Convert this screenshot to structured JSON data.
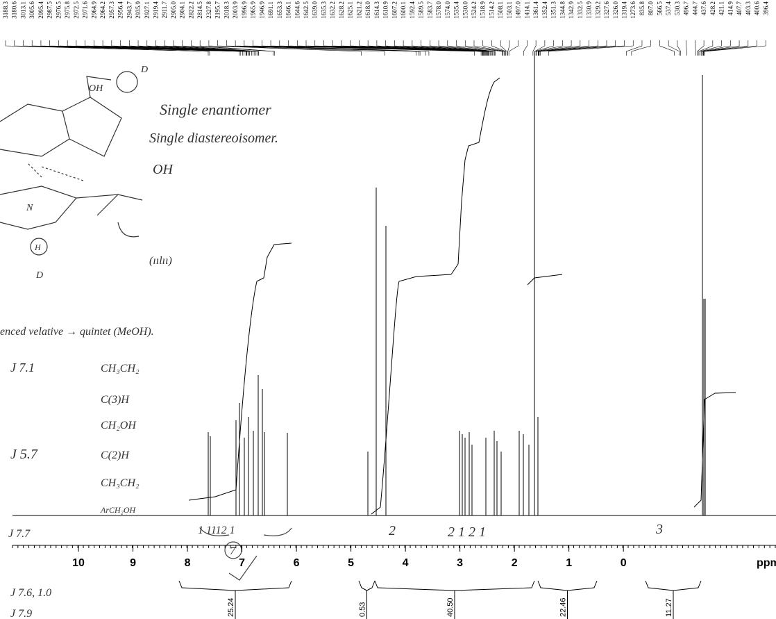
{
  "chart_data": {
    "type": "spectrum",
    "x_label": "ppm",
    "xlim": [
      11.44,
      -2.8
    ],
    "xticks": [
      10,
      9,
      8,
      7,
      6,
      5,
      4,
      3,
      2,
      1,
      0
    ],
    "peak_labels": [
      "3188.3",
      "3180.6",
      "3013.1",
      "3005.6",
      "2995.4",
      "2987.5",
      "2976.5",
      "2975.8",
      "2972.5",
      "2971.6",
      "2964.9",
      "2964.2",
      "2957.3",
      "2956.4",
      "2943.7",
      "2935.9",
      "2927.1",
      "2919.4",
      "2911.7",
      "2905.0",
      "2904.1",
      "2822.2",
      "2814.5",
      "2327.8",
      "2195.7",
      "2018.3",
      "2003.9",
      "1996.9",
      "1965.9",
      "1946.9",
      "1691.1",
      "1653.3",
      "1646.1",
      "1644.6",
      "1642.5",
      "1639.0",
      "1635.3",
      "1632.2",
      "1628.2",
      "1625.1",
      "1621.2",
      "1618.0",
      "1614.3",
      "1610.9",
      "1607.2",
      "1600.1",
      "1592.4",
      "1589.5",
      "1583.7",
      "1578.0",
      "1574.0",
      "1535.4",
      "1530.0",
      "1524.2",
      "1518.9",
      "1514.2",
      "1508.1",
      "1503.1",
      "1497.0",
      "1414.1",
      "1361.4",
      "1352.4",
      "1351.3",
      "1344.8",
      "1342.9",
      "1332.5",
      "1330.9",
      "1329.2",
      "1327.6",
      "1326.0",
      "1319.4",
      "1273.6",
      "835.8",
      "807.0",
      "566.5",
      "537.4",
      "530.3",
      "496.7",
      "444.7",
      "437.6",
      "428.2",
      "421.1",
      "414.9",
      "407.7",
      "403.3",
      "400.6",
      "396.4"
    ],
    "integrals": {
      "values": [
        25.24,
        0.53,
        40.5,
        22.46,
        11.27
      ],
      "value_labels": [
        "25.24",
        "0.53",
        "40.50",
        "22.46",
        "11.27"
      ]
    },
    "annotations": [
      "Single enantiomer",
      "Single diastereoisomer.",
      "OH",
      "D",
      "OH",
      "N",
      "H",
      "D",
      "(ıılıı)",
      "enced velative → quintet (MeOH).",
      "J 7.1",
      "CH₃CH₂",
      "C(3)H",
      "CH₂OH",
      "J 5.7",
      "C(2)H",
      "CH₃CH₂",
      "ArCH₂OH",
      "J 7.7",
      "1  1112  1",
      "7",
      "2",
      "2 1 2 1",
      "3",
      "J 7.6, 1.0",
      "J 7.9"
    ]
  }
}
